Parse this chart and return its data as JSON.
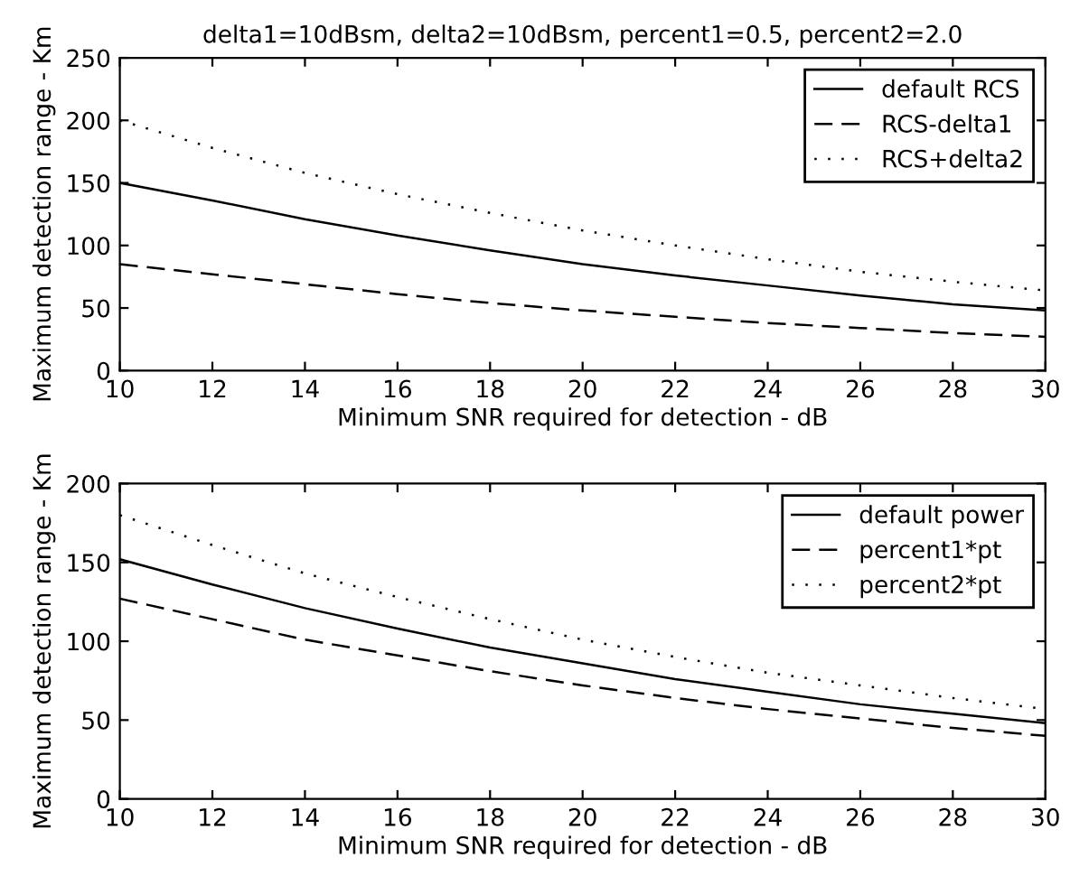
{
  "chart_data": [
    {
      "type": "line",
      "title": "delta1=10dBsm, delta2=10dBsm, percent1=0.5, percent2=2.0",
      "xlabel": "Minimum SNR required for detection - dB",
      "ylabel": "Maximum detection range - Km",
      "x": [
        10,
        12,
        14,
        16,
        18,
        20,
        22,
        24,
        26,
        28,
        30
      ],
      "series": [
        {
          "name": "default RCS",
          "color": "#000000",
          "line_style": "solid",
          "values": [
            150,
            136,
            121,
            108,
            96,
            85,
            76,
            68,
            60,
            53,
            48
          ]
        },
        {
          "name": "RCS-delta1",
          "color": "#000000",
          "line_style": "dashed",
          "values": [
            85,
            77,
            69,
            61,
            54,
            48,
            43,
            38,
            34,
            30,
            27
          ]
        },
        {
          "name": "RCS+delta2",
          "color": "#000000",
          "line_style": "dotted",
          "values": [
            200,
            178,
            158,
            141,
            126,
            112,
            100,
            89,
            79,
            71,
            64
          ]
        }
      ],
      "xlim": [
        10,
        30
      ],
      "ylim": [
        0,
        250
      ],
      "xticks": [
        10,
        12,
        14,
        16,
        18,
        20,
        22,
        24,
        26,
        28,
        30
      ],
      "yticks": [
        0,
        50,
        100,
        150,
        200,
        250
      ],
      "legend": "top right"
    },
    {
      "type": "line",
      "xlabel": "Minimum SNR required for detection - dB",
      "ylabel": "Maximum detection range - Km",
      "x": [
        10,
        12,
        14,
        16,
        18,
        20,
        22,
        24,
        26,
        28,
        30
      ],
      "series": [
        {
          "name": "default power",
          "color": "#000000",
          "line_style": "solid",
          "values": [
            152,
            136,
            121,
            108,
            96,
            86,
            76,
            68,
            60,
            54,
            48
          ]
        },
        {
          "name": "percent1*pt",
          "color": "#000000",
          "line_style": "dashed",
          "values": [
            127,
            114,
            101,
            91,
            81,
            72,
            64,
            57,
            51,
            45,
            40
          ]
        },
        {
          "name": "percent2*pt",
          "color": "#000000",
          "line_style": "dotted",
          "values": [
            180,
            161,
            143,
            128,
            114,
            101,
            90,
            80,
            72,
            64,
            57
          ]
        }
      ],
      "xlim": [
        10,
        30
      ],
      "ylim": [
        0,
        200
      ],
      "xticks": [
        10,
        12,
        14,
        16,
        18,
        20,
        22,
        24,
        26,
        28,
        30
      ],
      "yticks": [
        0,
        50,
        100,
        150,
        200
      ],
      "legend": "top right"
    }
  ]
}
